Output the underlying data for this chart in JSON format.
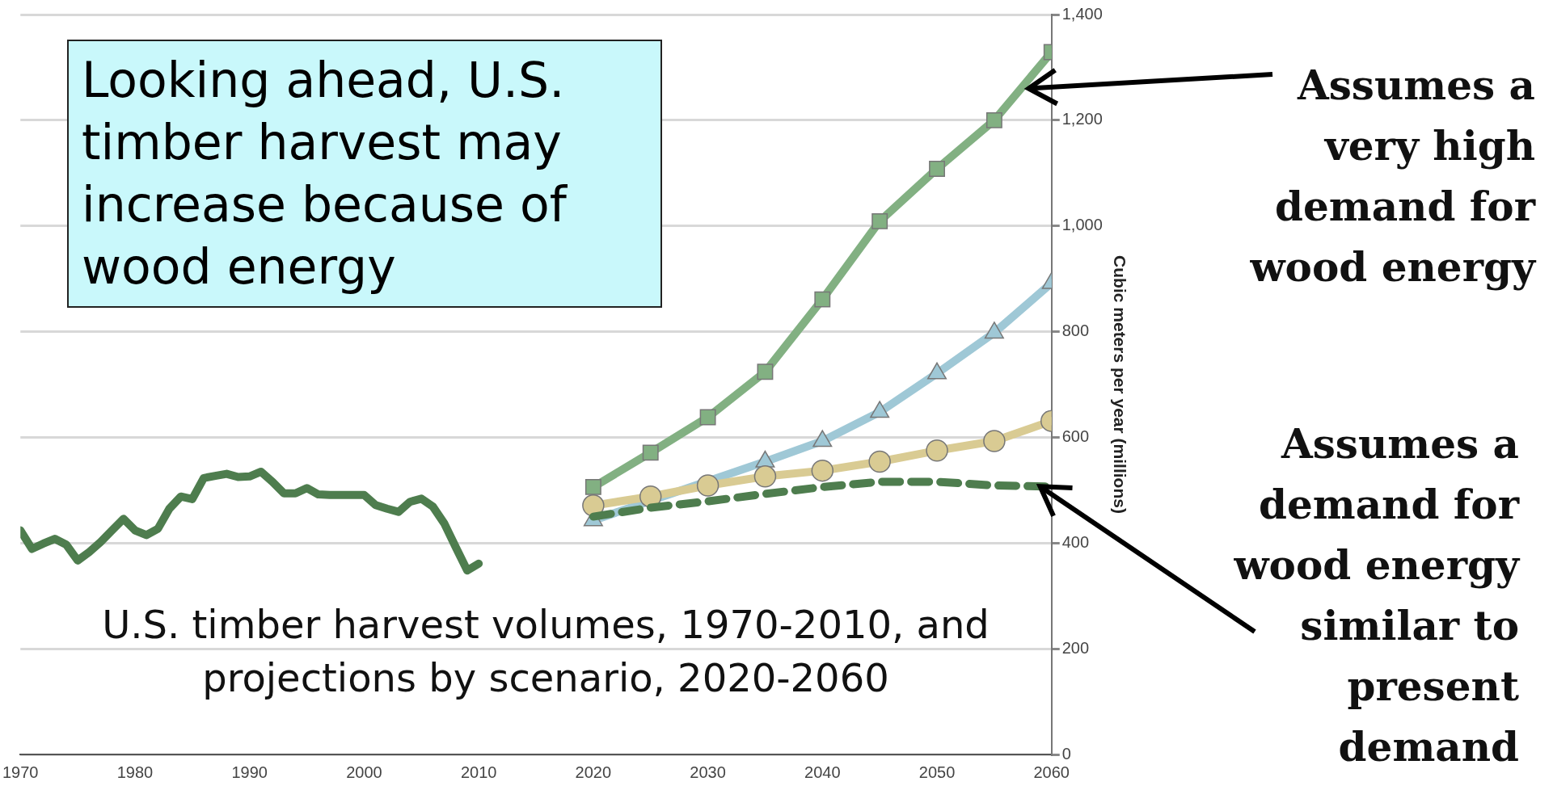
{
  "chart_data": {
    "type": "line",
    "ylabel": "Cubic meters per year (millions)",
    "annotations": [
      "Looking ahead, U.S. timber harvest may increase because of wood energy",
      "U.S. timber harvest volumes, 1970-2010, and projections by scenario, 2020-2060",
      {
        "text": "Assumes a very high demand for wood energy",
        "x": 2058,
        "y": 1260
      },
      {
        "text": "Assumes a demand for wood energy similar to present demand",
        "x": 2059,
        "y": 507
      }
    ],
    "xlim": [
      1970,
      2060
    ],
    "xticks": [
      1970,
      1980,
      1990,
      2000,
      2010,
      2020,
      2030,
      2040,
      2050,
      2060
    ],
    "ylim": [
      0,
      1400
    ],
    "yticks": [
      0,
      200,
      400,
      600,
      800,
      {
        "value": 1000,
        "label": "1,000"
      },
      {
        "value": 1200,
        "label": "1,200"
      },
      {
        "value": 1400,
        "label": "1,400"
      }
    ],
    "grid": "y",
    "legend": false,
    "series": [
      {
        "color": "#4e7d4e",
        "marker": "none",
        "x": [
          1970,
          1971,
          1972,
          1973,
          1974,
          1975,
          1976,
          1977,
          1978,
          1979,
          1980,
          1981,
          1982,
          1983,
          1984,
          1985,
          1986,
          1987,
          1988,
          1989,
          1990,
          1991,
          1992,
          1993,
          1994,
          1995,
          1996,
          1997,
          1998,
          1999,
          2000,
          2001,
          2002,
          2003,
          2004,
          2005,
          2006,
          2007,
          2008,
          2009,
          2010
        ],
        "values": [
          424,
          389,
          399,
          408,
          397,
          367,
          383,
          402,
          424,
          446,
          424,
          415,
          427,
          465,
          488,
          483,
          523,
          527,
          531,
          525,
          526,
          535,
          516,
          494,
          494,
          504,
          492,
          491,
          491,
          491,
          491,
          472,
          465,
          459,
          478,
          484,
          469,
          437,
          392,
          348,
          361
        ]
      },
      {
        "color": "#82b082",
        "marker": "square",
        "x": [
          2020,
          2025,
          2030,
          2035,
          2040,
          2045,
          2050,
          2055,
          2060
        ],
        "values": [
          506,
          571,
          638,
          724,
          861,
          1009,
          1108,
          1200,
          1329
        ]
      },
      {
        "color": "#9fc8d6",
        "marker": "triangle",
        "x": [
          2020,
          2025,
          2030,
          2035,
          2040,
          2045,
          2050,
          2055,
          2060
        ],
        "values": [
          443,
          null,
          null,
          554,
          593,
          648,
          721,
          798,
          892
        ]
      },
      {
        "color": "#d9cb93",
        "marker": "circle",
        "x": [
          2020,
          2025,
          2030,
          2035,
          2040,
          2045,
          2050,
          2055,
          2060
        ],
        "values": [
          471,
          488,
          509,
          526,
          537,
          554,
          575,
          593,
          631
        ]
      },
      {
        "color": "#4e7d4e",
        "marker": "none",
        "line_style": "dashed",
        "x": [
          2020,
          2025,
          2030,
          2035,
          2040,
          2045,
          2050,
          2055,
          2060
        ],
        "values": [
          450,
          467,
          479,
          493,
          506,
          516,
          516,
          509,
          507
        ]
      }
    ]
  }
}
